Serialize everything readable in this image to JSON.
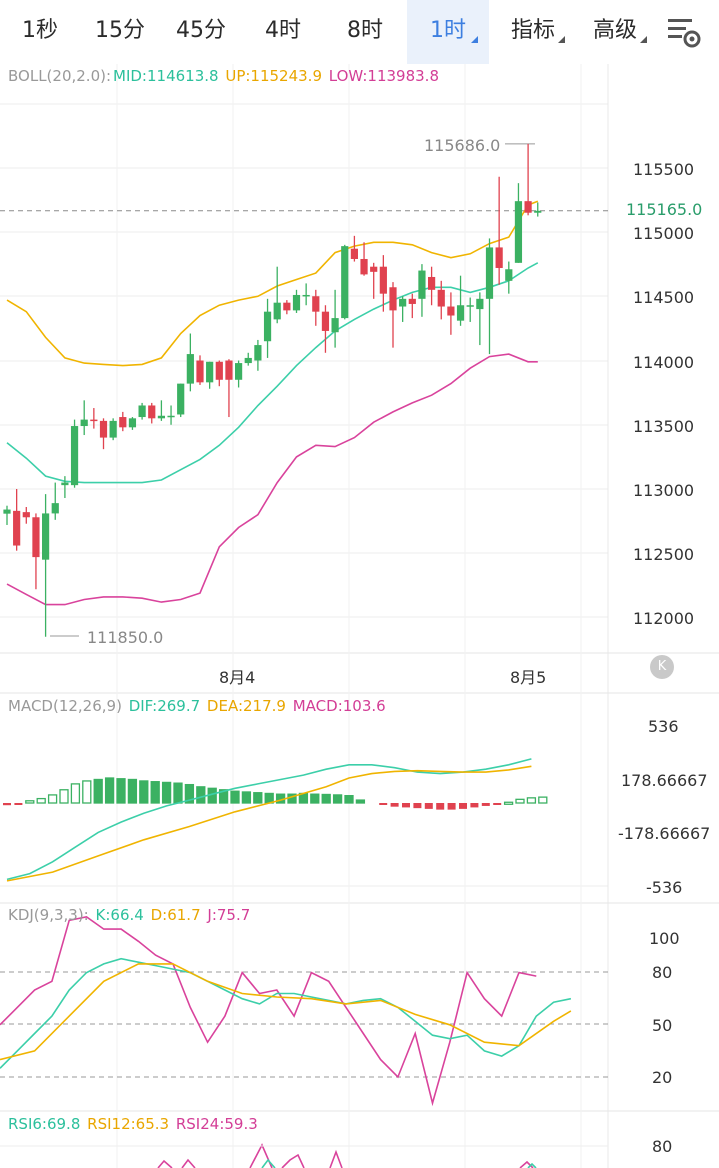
{
  "tabs": [
    {
      "label": "1秒",
      "active": false,
      "has_dropdown": false
    },
    {
      "label": "15分",
      "active": false,
      "has_dropdown": false
    },
    {
      "label": "45分",
      "active": false,
      "has_dropdown": false
    },
    {
      "label": "4时",
      "active": false,
      "has_dropdown": false
    },
    {
      "label": "8时",
      "active": false,
      "has_dropdown": false
    },
    {
      "label": "1时",
      "active": true,
      "has_dropdown": true
    },
    {
      "label": "指标",
      "active": false,
      "has_dropdown": true
    },
    {
      "label": "高级",
      "active": false,
      "has_dropdown": true
    }
  ],
  "settings_icon": "chart-settings-icon",
  "colors": {
    "up": "#3bb162",
    "down": "#e0424f",
    "mid": "#3ccfa9",
    "upper": "#f0b400",
    "lower": "#d9439c",
    "accent": "#3d7fe0"
  },
  "boll": {
    "label": "BOLL(20,2.0):",
    "mid": "MID:114613.8",
    "up": "UP:115243.9",
    "low": "LOW:113983.8"
  },
  "price": {
    "current": "115165.0",
    "high_label": "115686.0",
    "low_label": "111850.0",
    "y_ticks": [
      "115500",
      "115000",
      "114500",
      "114000",
      "113500",
      "113000",
      "112500",
      "112000"
    ]
  },
  "dates": [
    "8月4",
    "8月5"
  ],
  "k_button": "K",
  "macd": {
    "label": "MACD(12,26,9)",
    "dif": "DIF:269.7",
    "dea": "DEA:217.9",
    "macd": "MACD:103.6",
    "y_ticks": [
      "536",
      "178.66667",
      "-178.66667",
      "-536"
    ]
  },
  "kdj": {
    "label": "KDJ(9,3,3):",
    "k": "K:66.4",
    "d": "D:61.7",
    "j": "J:75.7",
    "y_ticks": [
      "100",
      "80",
      "50",
      "20"
    ]
  },
  "rsi": {
    "rsi6": "RSI6:69.8",
    "rsi12": "RSI12:65.3",
    "rsi24": "RSI24:59.3",
    "y_ticks": [
      "80"
    ]
  },
  "chart_data": {
    "type": "candlestick",
    "candles": [
      [
        112808,
        112840,
        112720,
        112870
      ],
      [
        112830,
        112560,
        112520,
        113000
      ],
      [
        112820,
        112780,
        112730,
        112860
      ],
      [
        112780,
        112470,
        112220,
        112810
      ],
      [
        112450,
        112810,
        111850,
        112960
      ],
      [
        112810,
        112890,
        112760,
        113050
      ],
      [
        113030,
        113050,
        112930,
        113100
      ],
      [
        113030,
        113490,
        113010,
        113540
      ],
      [
        113490,
        113540,
        113420,
        113690
      ],
      [
        113540,
        113530,
        113470,
        113630
      ],
      [
        113530,
        113400,
        113310,
        113550
      ],
      [
        113400,
        113530,
        113380,
        113550
      ],
      [
        113560,
        113480,
        113450,
        113600
      ],
      [
        113480,
        113550,
        113460,
        113560
      ],
      [
        113560,
        113650,
        113540,
        113670
      ],
      [
        113650,
        113550,
        113510,
        113670
      ],
      [
        113550,
        113570,
        113530,
        113690
      ],
      [
        113570,
        113570,
        113500,
        113650
      ],
      [
        113580,
        113820,
        113560,
        113820
      ],
      [
        113820,
        114050,
        113760,
        114210
      ],
      [
        114000,
        113830,
        113810,
        114040
      ],
      [
        113830,
        113990,
        113780,
        113990
      ],
      [
        113990,
        113850,
        113800,
        114000
      ],
      [
        114000,
        113850,
        113560,
        114010
      ],
      [
        113850,
        113980,
        113790,
        114000
      ],
      [
        113980,
        114020,
        113960,
        114060
      ],
      [
        114000,
        114120,
        113920,
        114160
      ],
      [
        114150,
        114380,
        114020,
        114480
      ],
      [
        114320,
        114450,
        114290,
        114730
      ],
      [
        114450,
        114390,
        114360,
        114470
      ],
      [
        114390,
        114510,
        114370,
        114550
      ],
      [
        114510,
        114510,
        114430,
        114600
      ],
      [
        114500,
        114380,
        114270,
        114550
      ],
      [
        114380,
        114230,
        114060,
        114430
      ],
      [
        114220,
        114330,
        114100,
        114550
      ],
      [
        114330,
        114890,
        114320,
        114900
      ],
      [
        114870,
        114790,
        114770,
        114970
      ],
      [
        114790,
        114670,
        114660,
        114920
      ],
      [
        114730,
        114690,
        114480,
        114760
      ],
      [
        114730,
        114520,
        114380,
        114820
      ],
      [
        114570,
        114390,
        114100,
        114610
      ],
      [
        114420,
        114480,
        114300,
        114500
      ],
      [
        114480,
        114440,
        114330,
        114520
      ],
      [
        114480,
        114700,
        114340,
        114750
      ],
      [
        114650,
        114550,
        114430,
        114730
      ],
      [
        114550,
        114420,
        114320,
        114620
      ],
      [
        114420,
        114350,
        114200,
        114530
      ],
      [
        114310,
        114430,
        114270,
        114660
      ],
      [
        114420,
        114430,
        114300,
        114490
      ],
      [
        114400,
        114480,
        114120,
        114530
      ],
      [
        114480,
        114880,
        114050,
        114950
      ],
      [
        114880,
        114720,
        114590,
        115430
      ],
      [
        114620,
        114710,
        114520,
        114770
      ],
      [
        114760,
        115240,
        114760,
        115380
      ],
      [
        115240,
        115150,
        115130,
        115686
      ],
      [
        115150,
        115165,
        115120,
        115230
      ]
    ],
    "boll_mid": [
      [
        0,
        113360
      ],
      [
        2,
        113240
      ],
      [
        4,
        113100
      ],
      [
        6,
        113060
      ],
      [
        8,
        113050
      ],
      [
        10,
        113050
      ],
      [
        12,
        113050
      ],
      [
        14,
        113050
      ],
      [
        16,
        113070
      ],
      [
        18,
        113150
      ],
      [
        20,
        113230
      ],
      [
        22,
        113340
      ],
      [
        24,
        113480
      ],
      [
        26,
        113650
      ],
      [
        28,
        113800
      ],
      [
        30,
        113960
      ],
      [
        32,
        114100
      ],
      [
        34,
        114230
      ],
      [
        36,
        114320
      ],
      [
        38,
        114400
      ],
      [
        40,
        114470
      ],
      [
        42,
        114530
      ],
      [
        44,
        114570
      ],
      [
        46,
        114570
      ],
      [
        48,
        114530
      ],
      [
        50,
        114570
      ],
      [
        52,
        114620
      ],
      [
        54,
        114720
      ],
      [
        55,
        114760
      ]
    ],
    "boll_up": [
      [
        0,
        114470
      ],
      [
        2,
        114380
      ],
      [
        4,
        114180
      ],
      [
        6,
        114020
      ],
      [
        8,
        113980
      ],
      [
        10,
        113970
      ],
      [
        12,
        113960
      ],
      [
        14,
        113970
      ],
      [
        16,
        114020
      ],
      [
        18,
        114210
      ],
      [
        20,
        114350
      ],
      [
        22,
        114430
      ],
      [
        24,
        114470
      ],
      [
        26,
        114500
      ],
      [
        28,
        114580
      ],
      [
        30,
        114630
      ],
      [
        32,
        114680
      ],
      [
        34,
        114840
      ],
      [
        36,
        114890
      ],
      [
        38,
        114920
      ],
      [
        40,
        114920
      ],
      [
        42,
        114900
      ],
      [
        44,
        114840
      ],
      [
        46,
        114800
      ],
      [
        48,
        114830
      ],
      [
        50,
        114910
      ],
      [
        52,
        114960
      ],
      [
        54,
        115210
      ],
      [
        55,
        115240
      ]
    ],
    "boll_low": [
      [
        0,
        112260
      ],
      [
        2,
        112180
      ],
      [
        4,
        112100
      ],
      [
        6,
        112100
      ],
      [
        8,
        112140
      ],
      [
        10,
        112160
      ],
      [
        12,
        112160
      ],
      [
        14,
        112150
      ],
      [
        16,
        112120
      ],
      [
        18,
        112140
      ],
      [
        20,
        112190
      ],
      [
        22,
        112550
      ],
      [
        24,
        112700
      ],
      [
        26,
        112800
      ],
      [
        28,
        113050
      ],
      [
        30,
        113250
      ],
      [
        32,
        113340
      ],
      [
        34,
        113330
      ],
      [
        36,
        113400
      ],
      [
        38,
        113520
      ],
      [
        40,
        113600
      ],
      [
        42,
        113670
      ],
      [
        44,
        113730
      ],
      [
        46,
        113820
      ],
      [
        48,
        113940
      ],
      [
        50,
        114030
      ],
      [
        52,
        114050
      ],
      [
        54,
        113990
      ],
      [
        55,
        113990
      ]
    ],
    "macd_hist": [
      [
        0,
        -15
      ],
      [
        1,
        -10
      ],
      [
        2,
        15
      ],
      [
        3,
        30
      ],
      [
        4,
        55
      ],
      [
        5,
        90
      ],
      [
        6,
        130
      ],
      [
        7,
        150
      ],
      [
        8,
        160
      ],
      [
        9,
        170
      ],
      [
        10,
        165
      ],
      [
        11,
        160
      ],
      [
        12,
        150
      ],
      [
        13,
        145
      ],
      [
        14,
        140
      ],
      [
        15,
        135
      ],
      [
        16,
        125
      ],
      [
        17,
        110
      ],
      [
        18,
        100
      ],
      [
        19,
        90
      ],
      [
        20,
        80
      ],
      [
        21,
        75
      ],
      [
        22,
        70
      ],
      [
        23,
        65
      ],
      [
        24,
        60
      ],
      [
        25,
        60
      ],
      [
        26,
        65
      ],
      [
        27,
        60
      ],
      [
        28,
        58
      ],
      [
        29,
        55
      ],
      [
        30,
        50
      ],
      [
        31,
        20
      ],
      [
        33,
        -10
      ],
      [
        34,
        -25
      ],
      [
        35,
        -30
      ],
      [
        36,
        -35
      ],
      [
        37,
        -40
      ],
      [
        38,
        -45
      ],
      [
        39,
        -45
      ],
      [
        40,
        -40
      ],
      [
        41,
        -30
      ],
      [
        42,
        -20
      ],
      [
        43,
        -5
      ],
      [
        44,
        5
      ],
      [
        45,
        25
      ],
      [
        46,
        35
      ],
      [
        47,
        40
      ]
    ],
    "macd_dif": [
      [
        0,
        -520
      ],
      [
        2,
        -480
      ],
      [
        4,
        -400
      ],
      [
        6,
        -300
      ],
      [
        8,
        -200
      ],
      [
        10,
        -130
      ],
      [
        12,
        -70
      ],
      [
        14,
        -20
      ],
      [
        16,
        20
      ],
      [
        18,
        60
      ],
      [
        20,
        100
      ],
      [
        22,
        130
      ],
      [
        24,
        160
      ],
      [
        26,
        190
      ],
      [
        28,
        230
      ],
      [
        30,
        260
      ],
      [
        32,
        260
      ],
      [
        34,
        240
      ],
      [
        36,
        210
      ],
      [
        38,
        200
      ],
      [
        40,
        210
      ],
      [
        42,
        230
      ],
      [
        44,
        260
      ],
      [
        46,
        300
      ]
    ],
    "macd_dea": [
      [
        0,
        -530
      ],
      [
        4,
        -470
      ],
      [
        8,
        -360
      ],
      [
        12,
        -250
      ],
      [
        16,
        -160
      ],
      [
        20,
        -60
      ],
      [
        24,
        20
      ],
      [
        28,
        110
      ],
      [
        30,
        170
      ],
      [
        32,
        200
      ],
      [
        34,
        215
      ],
      [
        36,
        220
      ],
      [
        38,
        215
      ],
      [
        40,
        210
      ],
      [
        42,
        210
      ],
      [
        44,
        225
      ],
      [
        46,
        250
      ]
    ],
    "kdj_k": [
      [
        0,
        25
      ],
      [
        1,
        35
      ],
      [
        2,
        45
      ],
      [
        3,
        55
      ],
      [
        4,
        70
      ],
      [
        5,
        80
      ],
      [
        6,
        85
      ],
      [
        7,
        88
      ],
      [
        8,
        86
      ],
      [
        9,
        84
      ],
      [
        10,
        82
      ],
      [
        11,
        80
      ],
      [
        12,
        75
      ],
      [
        13,
        70
      ],
      [
        14,
        65
      ],
      [
        15,
        62
      ],
      [
        16,
        68
      ],
      [
        17,
        68
      ],
      [
        18,
        66
      ],
      [
        19,
        64
      ],
      [
        20,
        62
      ],
      [
        21,
        64
      ],
      [
        22,
        65
      ],
      [
        23,
        60
      ],
      [
        24,
        52
      ],
      [
        25,
        44
      ],
      [
        26,
        42
      ],
      [
        27,
        44
      ],
      [
        28,
        35
      ],
      [
        29,
        32
      ],
      [
        30,
        38
      ],
      [
        31,
        55
      ],
      [
        32,
        63
      ],
      [
        33,
        65
      ]
    ],
    "kdj_d": [
      [
        0,
        30
      ],
      [
        2,
        35
      ],
      [
        4,
        55
      ],
      [
        6,
        75
      ],
      [
        8,
        85
      ],
      [
        10,
        85
      ],
      [
        12,
        75
      ],
      [
        14,
        68
      ],
      [
        16,
        66
      ],
      [
        18,
        65
      ],
      [
        20,
        62
      ],
      [
        22,
        64
      ],
      [
        24,
        56
      ],
      [
        26,
        50
      ],
      [
        28,
        40
      ],
      [
        30,
        38
      ],
      [
        32,
        52
      ],
      [
        33,
        58
      ]
    ],
    "kdj_j": [
      [
        0,
        50
      ],
      [
        1,
        60
      ],
      [
        2,
        70
      ],
      [
        3,
        75
      ],
      [
        4,
        110
      ],
      [
        5,
        112
      ],
      [
        6,
        105
      ],
      [
        7,
        105
      ],
      [
        8,
        98
      ],
      [
        9,
        90
      ],
      [
        10,
        85
      ],
      [
        11,
        60
      ],
      [
        12,
        40
      ],
      [
        13,
        55
      ],
      [
        14,
        80
      ],
      [
        15,
        68
      ],
      [
        16,
        70
      ],
      [
        17,
        55
      ],
      [
        18,
        80
      ],
      [
        19,
        75
      ],
      [
        20,
        60
      ],
      [
        21,
        45
      ],
      [
        22,
        30
      ],
      [
        23,
        20
      ],
      [
        24,
        45
      ],
      [
        25,
        5
      ],
      [
        26,
        40
      ],
      [
        27,
        80
      ],
      [
        28,
        65
      ],
      [
        29,
        55
      ],
      [
        30,
        80
      ],
      [
        31,
        78
      ]
    ]
  }
}
